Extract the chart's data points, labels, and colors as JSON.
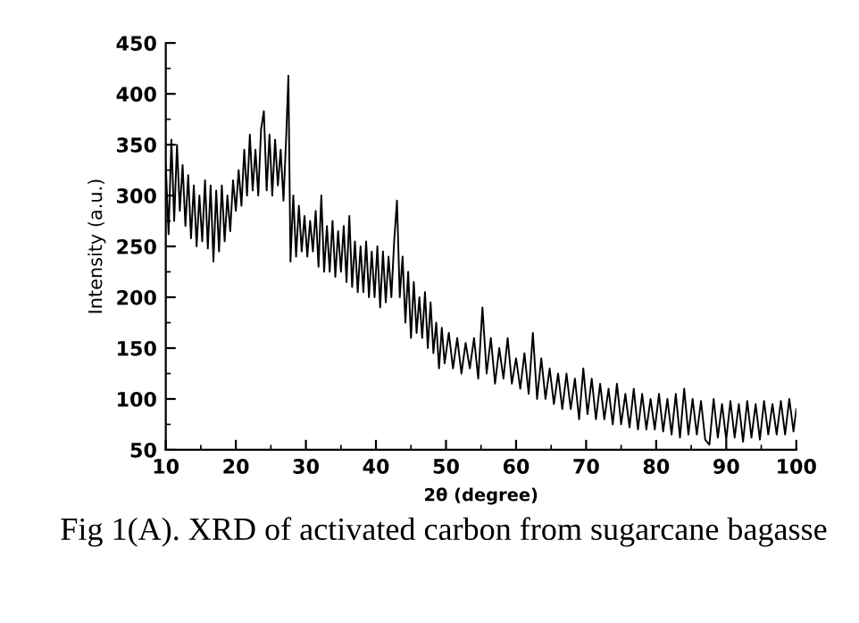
{
  "chart_data": {
    "type": "line",
    "xlabel": "2θ (degree)",
    "ylabel": "Intensity (a.u.)",
    "annotations": [
      "Fig 1(A). XRD of activated carbon from sugarcane bagasse"
    ],
    "xlim": [
      10,
      100
    ],
    "xticks": [
      10,
      20,
      30,
      40,
      50,
      60,
      70,
      80,
      90,
      100
    ],
    "ylim": [
      50,
      450
    ],
    "yticks": [
      50,
      100,
      150,
      200,
      250,
      300,
      350,
      400,
      450
    ],
    "grid": false,
    "legend": false,
    "marker": "none",
    "line_style": "solid",
    "series": [
      {
        "color": "#000000",
        "x": [
          10.0,
          10.4,
          10.8,
          11.2,
          11.6,
          12.0,
          12.4,
          12.8,
          13.2,
          13.6,
          14.0,
          14.4,
          14.8,
          15.2,
          15.6,
          16.0,
          16.4,
          16.8,
          17.2,
          17.6,
          18.0,
          18.4,
          18.8,
          19.2,
          19.6,
          20.0,
          20.4,
          20.8,
          21.2,
          21.6,
          22.0,
          22.4,
          22.8,
          23.2,
          23.6,
          24.0,
          24.4,
          24.8,
          25.2,
          25.6,
          26.0,
          26.4,
          26.8,
          27.2,
          27.5,
          27.8,
          28.2,
          28.6,
          29.0,
          29.4,
          29.8,
          30.2,
          30.6,
          31.0,
          31.4,
          31.8,
          32.2,
          32.6,
          33.0,
          33.4,
          33.8,
          34.2,
          34.6,
          35.0,
          35.4,
          35.8,
          36.2,
          36.6,
          37.0,
          37.4,
          37.8,
          38.2,
          38.6,
          39.0,
          39.4,
          39.8,
          40.2,
          40.6,
          41.0,
          41.4,
          41.8,
          42.2,
          42.6,
          43.0,
          43.4,
          43.8,
          44.2,
          44.6,
          45.0,
          45.4,
          45.8,
          46.2,
          46.6,
          47.0,
          47.4,
          47.8,
          48.2,
          48.6,
          49.0,
          49.4,
          49.8,
          50.4,
          51.0,
          51.6,
          52.2,
          52.8,
          53.4,
          54.0,
          54.6,
          55.2,
          55.8,
          56.4,
          57.0,
          57.6,
          58.2,
          58.8,
          59.4,
          60.0,
          60.6,
          61.2,
          61.8,
          62.4,
          63.0,
          63.6,
          64.2,
          64.8,
          65.4,
          66.0,
          66.6,
          67.2,
          67.8,
          68.4,
          69.0,
          69.6,
          70.2,
          70.8,
          71.4,
          72.0,
          72.6,
          73.2,
          73.8,
          74.4,
          75.0,
          75.6,
          76.2,
          76.8,
          77.4,
          78.0,
          78.6,
          79.2,
          79.8,
          80.4,
          81.0,
          81.6,
          82.2,
          82.8,
          83.4,
          84.0,
          84.6,
          85.2,
          85.8,
          86.4,
          87.0,
          87.6,
          88.2,
          88.8,
          89.4,
          90.0,
          90.6,
          91.2,
          91.8,
          92.4,
          93.0,
          93.6,
          94.2,
          94.8,
          95.4,
          96.0,
          96.6,
          97.2,
          97.8,
          98.4,
          99.0,
          99.6,
          100.0
        ],
        "values": [
          330,
          262,
          355,
          275,
          350,
          285,
          330,
          270,
          320,
          258,
          310,
          250,
          300,
          255,
          315,
          248,
          310,
          235,
          305,
          245,
          310,
          255,
          300,
          265,
          315,
          285,
          325,
          290,
          345,
          300,
          360,
          305,
          345,
          300,
          365,
          383,
          305,
          360,
          300,
          355,
          310,
          345,
          295,
          360,
          418,
          235,
          300,
          240,
          290,
          245,
          280,
          240,
          275,
          245,
          285,
          230,
          300,
          225,
          270,
          225,
          275,
          220,
          265,
          225,
          270,
          215,
          280,
          210,
          255,
          205,
          250,
          205,
          255,
          200,
          245,
          200,
          250,
          190,
          245,
          195,
          240,
          200,
          255,
          295,
          200,
          240,
          175,
          225,
          160,
          215,
          165,
          200,
          160,
          205,
          150,
          195,
          145,
          175,
          130,
          170,
          135,
          165,
          130,
          160,
          125,
          155,
          130,
          160,
          120,
          190,
          125,
          160,
          115,
          150,
          120,
          160,
          115,
          140,
          110,
          145,
          105,
          165,
          100,
          140,
          100,
          130,
          95,
          125,
          90,
          125,
          90,
          120,
          80,
          130,
          85,
          120,
          80,
          115,
          80,
          110,
          75,
          115,
          75,
          105,
          72,
          110,
          70,
          105,
          70,
          100,
          70,
          105,
          68,
          100,
          65,
          105,
          62,
          110,
          65,
          100,
          65,
          98,
          60,
          55,
          100,
          62,
          95,
          60,
          98,
          62,
          95,
          58,
          98,
          62,
          95,
          60,
          98,
          65,
          95,
          65,
          98,
          65,
          100,
          68,
          90
        ]
      }
    ]
  }
}
